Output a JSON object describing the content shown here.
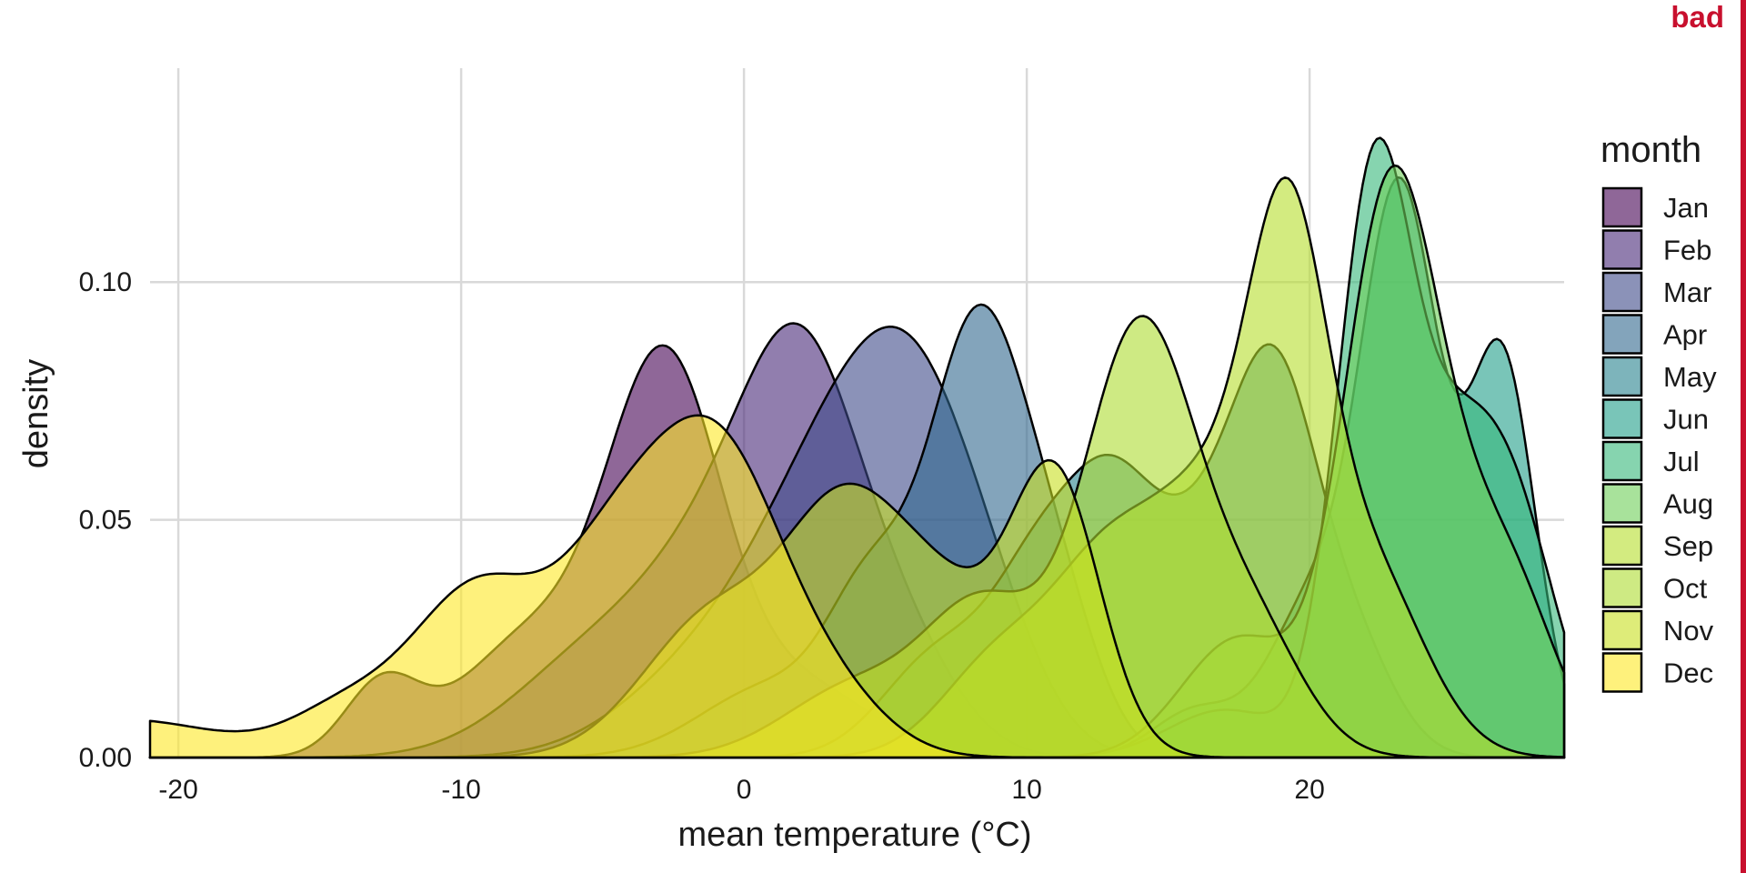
{
  "badge": "bad",
  "colors": {
    "badge": "#c8102e",
    "grid": "#d9d9d9"
  },
  "chart_data": {
    "type": "area",
    "subtype": "overlapping density",
    "title": "",
    "xlabel": "mean temperature (°C)",
    "ylabel": "density",
    "xlim": [
      -21,
      29
    ],
    "ylim": [
      0,
      0.145
    ],
    "x_ticks": [
      -20,
      -10,
      0,
      10,
      20
    ],
    "x_tick_labels": [
      "-20",
      "-10",
      "0",
      "10",
      "20"
    ],
    "y_ticks": [
      0.0,
      0.05,
      0.1
    ],
    "y_tick_labels": [
      "0.00",
      "0.05",
      "0.10"
    ],
    "grid": true,
    "legend_title": "month",
    "legend_position": "right",
    "fill_opacity": 0.6,
    "series": [
      {
        "name": "Jan",
        "color": "#440154",
        "components": [
          {
            "mu": -12.8,
            "sd": 1.3,
            "h": 0.015
          },
          {
            "mu": -7.5,
            "sd": 2.5,
            "h": 0.025
          },
          {
            "mu": -2.8,
            "sd": 2.0,
            "h": 0.08
          },
          {
            "mu": 2.0,
            "sd": 2.5,
            "h": 0.015
          }
        ]
      },
      {
        "name": "Feb",
        "color": "#482878",
        "components": [
          {
            "mu": -5.0,
            "sd": 3.0,
            "h": 0.022
          },
          {
            "mu": -0.5,
            "sd": 2.5,
            "h": 0.038
          },
          {
            "mu": 2.2,
            "sd": 2.0,
            "h": 0.062
          },
          {
            "mu": 5.5,
            "sd": 2.0,
            "h": 0.022
          }
        ]
      },
      {
        "name": "Mar",
        "color": "#3e4989",
        "components": [
          {
            "mu": -1.0,
            "sd": 3.0,
            "h": 0.02
          },
          {
            "mu": 3.0,
            "sd": 2.5,
            "h": 0.045
          },
          {
            "mu": 6.2,
            "sd": 2.3,
            "h": 0.062
          },
          {
            "mu": 9.0,
            "sd": 1.8,
            "h": 0.012
          }
        ]
      },
      {
        "name": "Apr",
        "color": "#31688e",
        "components": [
          {
            "mu": 1.0,
            "sd": 2.5,
            "h": 0.015
          },
          {
            "mu": 4.5,
            "sd": 1.5,
            "h": 0.03
          },
          {
            "mu": 8.2,
            "sd": 1.7,
            "h": 0.088
          },
          {
            "mu": 11.0,
            "sd": 1.5,
            "h": 0.03
          }
        ]
      },
      {
        "name": "May",
        "color": "#26828e",
        "components": [
          {
            "mu": 7.0,
            "sd": 2.0,
            "h": 0.022
          },
          {
            "mu": 10.5,
            "sd": 1.6,
            "h": 0.035
          },
          {
            "mu": 13.0,
            "sd": 1.5,
            "h": 0.043
          },
          {
            "mu": 16.0,
            "sd": 1.8,
            "h": 0.04
          },
          {
            "mu": 18.8,
            "sd": 1.5,
            "h": 0.07
          },
          {
            "mu": 21.5,
            "sd": 1.5,
            "h": 0.022
          }
        ]
      },
      {
        "name": "Jun",
        "color": "#1f9e89",
        "components": [
          {
            "mu": 16.0,
            "sd": 1.5,
            "h": 0.01
          },
          {
            "mu": 20.0,
            "sd": 1.5,
            "h": 0.03
          },
          {
            "mu": 23.2,
            "sd": 1.4,
            "h": 0.118
          },
          {
            "mu": 26.8,
            "sd": 1.2,
            "h": 0.083
          }
        ]
      },
      {
        "name": "Jul",
        "color": "#35b779",
        "components": [
          {
            "mu": 17.0,
            "sd": 2.0,
            "h": 0.01
          },
          {
            "mu": 22.2,
            "sd": 1.3,
            "h": 0.11
          },
          {
            "mu": 25.0,
            "sd": 1.8,
            "h": 0.06
          },
          {
            "mu": 27.5,
            "sd": 1.5,
            "h": 0.035
          }
        ]
      },
      {
        "name": "Aug",
        "color": "#6ece58",
        "components": [
          {
            "mu": 17.5,
            "sd": 2.0,
            "h": 0.025
          },
          {
            "mu": 22.7,
            "sd": 1.6,
            "h": 0.1
          },
          {
            "mu": 25.0,
            "sd": 2.0,
            "h": 0.042
          },
          {
            "mu": 27.5,
            "sd": 1.5,
            "h": 0.02
          }
        ]
      },
      {
        "name": "Sep",
        "color": "#b5de2b",
        "components": [
          {
            "mu": 9.0,
            "sd": 2.0,
            "h": 0.02
          },
          {
            "mu": 13.0,
            "sd": 2.0,
            "h": 0.04
          },
          {
            "mu": 16.5,
            "sd": 1.8,
            "h": 0.045
          },
          {
            "mu": 19.2,
            "sd": 1.4,
            "h": 0.092
          },
          {
            "mu": 22.0,
            "sd": 2.0,
            "h": 0.04
          }
        ]
      },
      {
        "name": "Oct",
        "color": "#addc30",
        "components": [
          {
            "mu": 4.0,
            "sd": 2.5,
            "h": 0.015
          },
          {
            "mu": 8.5,
            "sd": 2.0,
            "h": 0.03
          },
          {
            "mu": 14.0,
            "sd": 2.0,
            "h": 0.09
          },
          {
            "mu": 18.0,
            "sd": 1.8,
            "h": 0.025
          }
        ]
      },
      {
        "name": "Nov",
        "color": "#c8e020",
        "components": [
          {
            "mu": -1.0,
            "sd": 2.5,
            "h": 0.03
          },
          {
            "mu": 3.5,
            "sd": 2.0,
            "h": 0.045
          },
          {
            "mu": 7.0,
            "sd": 2.0,
            "h": 0.03
          },
          {
            "mu": 11.0,
            "sd": 1.6,
            "h": 0.058
          }
        ]
      },
      {
        "name": "Dec",
        "color": "#fde725",
        "components": [
          {
            "mu": -22.0,
            "sd": 3.5,
            "h": 0.008
          },
          {
            "mu": -14.0,
            "sd": 2.0,
            "h": 0.01
          },
          {
            "mu": -9.5,
            "sd": 2.2,
            "h": 0.034
          },
          {
            "mu": -4.5,
            "sd": 2.2,
            "h": 0.04
          },
          {
            "mu": -0.8,
            "sd": 2.2,
            "h": 0.058
          },
          {
            "mu": 3.0,
            "sd": 2.0,
            "h": 0.012
          }
        ]
      }
    ]
  }
}
